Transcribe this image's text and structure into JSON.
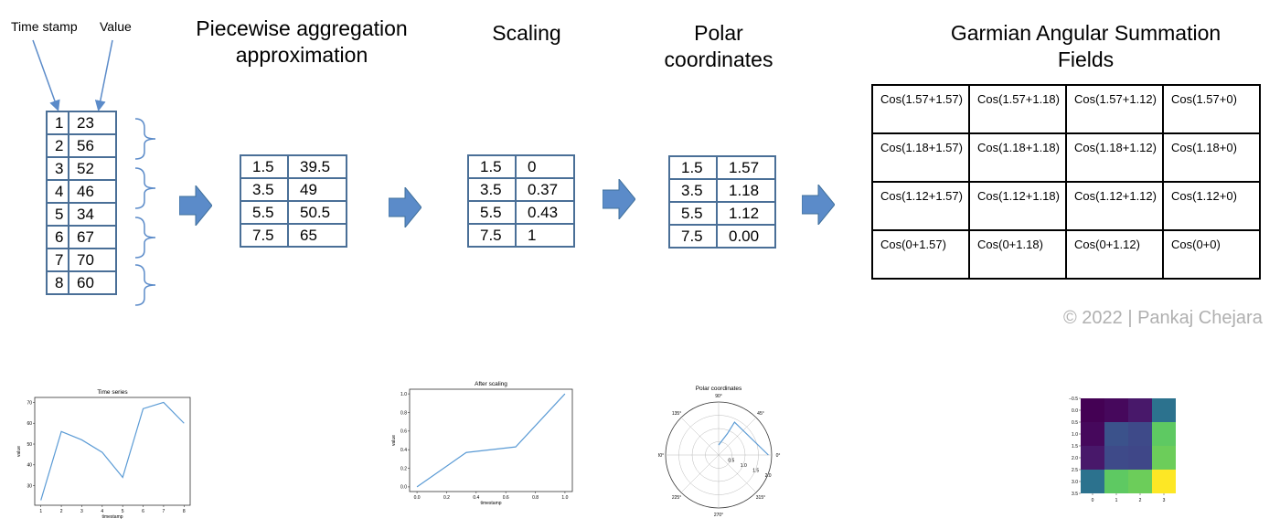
{
  "input_labels": {
    "timestamp": "Time stamp",
    "value": "Value"
  },
  "input_table": [
    [
      "1",
      "23"
    ],
    [
      "2",
      "56"
    ],
    [
      "3",
      "52"
    ],
    [
      "4",
      "46"
    ],
    [
      "5",
      "34"
    ],
    [
      "6",
      "67"
    ],
    [
      "7",
      "70"
    ],
    [
      "8",
      "60"
    ]
  ],
  "steps": {
    "paa": {
      "title_line1": "Piecewise aggregation",
      "title_line2": "approximation",
      "rows": [
        [
          "1.5",
          "39.5"
        ],
        [
          "3.5",
          "49"
        ],
        [
          "5.5",
          "50.5"
        ],
        [
          "7.5",
          "65"
        ]
      ]
    },
    "scaling": {
      "title": "Scaling",
      "rows": [
        [
          "1.5",
          "0"
        ],
        [
          "3.5",
          "0.37"
        ],
        [
          "5.5",
          "0.43"
        ],
        [
          "7.5",
          "1"
        ]
      ]
    },
    "polar": {
      "title_line1": "Polar",
      "title_line2": "coordinates",
      "rows": [
        [
          "1.5",
          "1.57"
        ],
        [
          "3.5",
          "1.18"
        ],
        [
          "5.5",
          "1.12"
        ],
        [
          "7.5",
          "0.00"
        ]
      ]
    },
    "gasf": {
      "title_line1": "Garmian Angular Summation",
      "title_line2": "Fields",
      "grid": [
        [
          "Cos(1.57+1.57)",
          "Cos(1.57+1.18)",
          "Cos(1.57+1.12)",
          "Cos(1.57+0)"
        ],
        [
          "Cos(1.18+1.57)",
          "Cos(1.18+1.18)",
          "Cos(1.18+1.12)",
          "Cos(1.18+0)"
        ],
        [
          "Cos(1.12+1.57)",
          "Cos(1.12+1.18)",
          "Cos(1.12+1.12)",
          "Cos(1.12+0)"
        ],
        [
          "Cos(0+1.57)",
          "Cos(0+1.18)",
          "Cos(0+1.12)",
          "Cos(0+0)"
        ]
      ]
    }
  },
  "copyright": "© 2022 | Pankaj Chejara",
  "colors": {
    "table_border": "#4a6f97",
    "arrow_fill": "#5b8bc9",
    "line": "#5b9bd5"
  },
  "chart_data": [
    {
      "type": "line",
      "title": "Time series",
      "xlabel": "timestamp",
      "ylabel": "value",
      "x": [
        1,
        2,
        3,
        4,
        5,
        6,
        7,
        8
      ],
      "y": [
        23,
        56,
        52,
        46,
        34,
        67,
        70,
        60
      ],
      "xticks": [
        "1",
        "2",
        "3",
        "4",
        "5",
        "6",
        "7",
        "8"
      ],
      "yticks": [
        "30",
        "40",
        "50",
        "60",
        "70"
      ],
      "xlim": [
        0.7,
        8.3
      ],
      "ylim": [
        20.6,
        72.4
      ]
    },
    {
      "type": "line",
      "title": "After scaling",
      "xlabel": "timestamp",
      "ylabel": "value",
      "x": [
        0,
        0.333,
        0.667,
        1.0
      ],
      "y": [
        0,
        0.37,
        0.43,
        1.0
      ],
      "xticks": [
        "0.0",
        "0.2",
        "0.4",
        "0.6",
        "0.8",
        "1.0"
      ],
      "yticks": [
        "0.0",
        "0.2",
        "0.4",
        "0.6",
        "0.8",
        "1.0"
      ],
      "xlim": [
        -0.05,
        1.05
      ],
      "ylim": [
        -0.05,
        1.05
      ]
    },
    {
      "type": "polar",
      "title": "Polar coordinates",
      "theta": [
        1.57,
        1.18,
        1.12,
        0.0
      ],
      "r": [
        1.5,
        3.5,
        5.5,
        7.5
      ],
      "angle_labels": [
        "0°",
        "45°",
        "90°",
        "135°",
        "180°",
        "225°",
        "270°",
        "315°"
      ],
      "radial_labels": [
        "0.5",
        "1.0",
        "1.5",
        "2.0"
      ]
    },
    {
      "type": "heatmap",
      "values": [
        [
          -1.0,
          -0.93,
          -0.9,
          0.0
        ],
        [
          -0.93,
          -0.71,
          -0.66,
          0.38
        ],
        [
          -0.9,
          -0.66,
          -0.62,
          0.44
        ],
        [
          0.0,
          0.38,
          0.44,
          1.0
        ]
      ],
      "colors": [
        [
          "#440154",
          "#46085c",
          "#48186a",
          "#2c728e"
        ],
        [
          "#46085c",
          "#3b528b",
          "#3e4a89",
          "#5ec962"
        ],
        [
          "#48186a",
          "#3e4a89",
          "#3f4788",
          "#6ccd5a"
        ],
        [
          "#2c728e",
          "#5ec962",
          "#6ccd5a",
          "#fde725"
        ]
      ],
      "xticks": [
        "0",
        "1",
        "2",
        "3"
      ],
      "yticks": [
        "−0.5",
        "0.0",
        "0.5",
        "1.0",
        "1.5",
        "2.0",
        "2.5",
        "3.0",
        "3.5"
      ]
    }
  ]
}
